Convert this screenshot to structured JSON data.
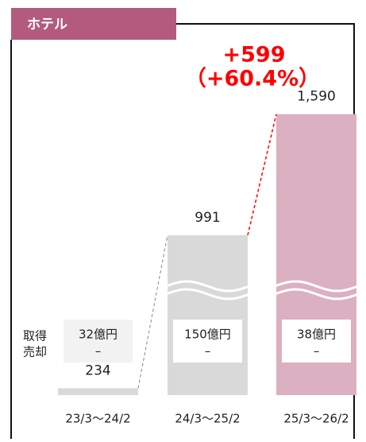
{
  "chart_data": {
    "type": "bar",
    "title": "ホテル",
    "categories": [
      "23/3～24/2",
      "24/3～25/2",
      "25/3～26/2"
    ],
    "values": [
      234,
      991,
      1590
    ],
    "value_labels": [
      "234",
      "991",
      "1,590"
    ],
    "colors": [
      "#d9d9d9",
      "#d9d9d9",
      "#dbb0c0"
    ],
    "ylim": [
      200,
      1600
    ],
    "annotations": [
      "+599",
      "（+60.4%）"
    ],
    "row_labels": [
      "取得",
      "売却"
    ],
    "breakdown": [
      [
        "32億円",
        "–"
      ],
      [
        "150億円",
        "–"
      ],
      [
        "38億円",
        "–"
      ]
    ]
  }
}
